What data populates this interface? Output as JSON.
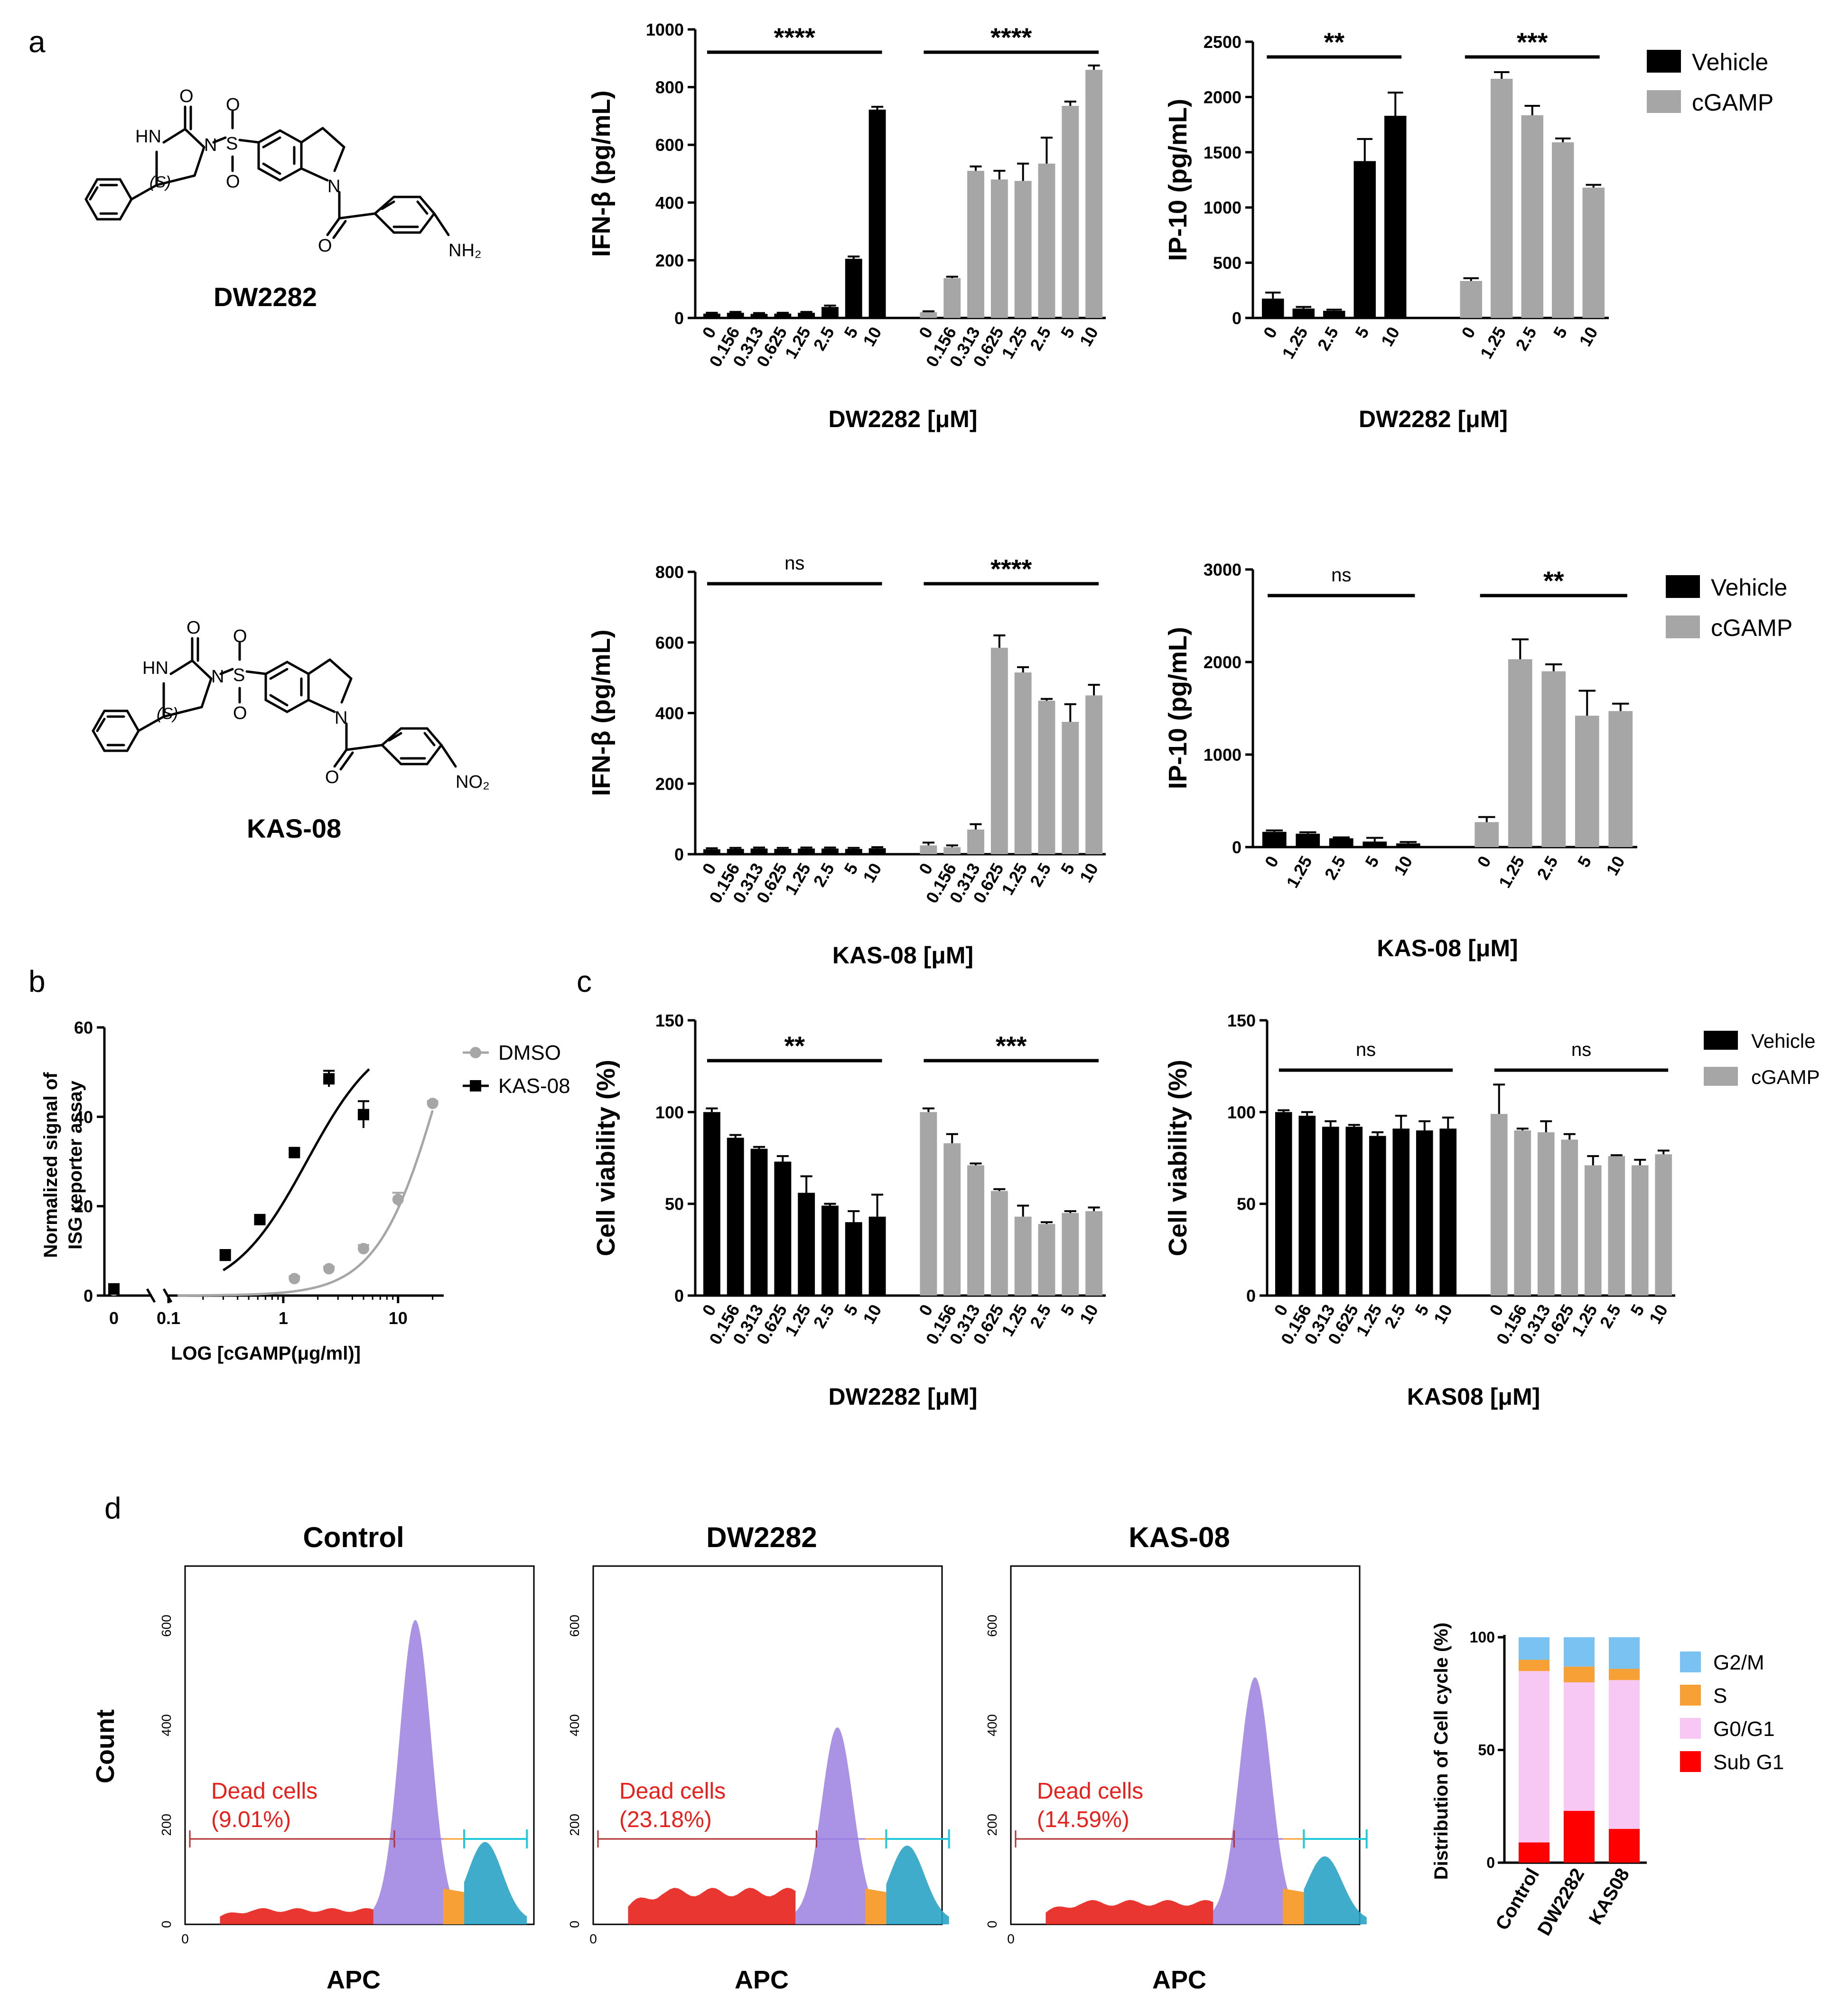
{
  "panels": {
    "a": "a",
    "b": "b",
    "c": "c",
    "d": "d"
  },
  "compounds": {
    "dw2282": {
      "name": "DW2282",
      "atoms": {
        "hn": "HN",
        "o1": "O",
        "o2": "O",
        "o3": "O",
        "s": "S",
        "n1": "N",
        "n2": "N",
        "stereo": "(S)",
        "o4": "O",
        "sub": "NH₂"
      }
    },
    "kas08": {
      "name": "KAS-08",
      "atoms": {
        "hn": "HN",
        "o1": "O",
        "o2": "O",
        "o3": "O",
        "s": "S",
        "n1": "N",
        "n2": "N",
        "stereo": "(S)",
        "o4": "O",
        "sub": "NO₂"
      }
    }
  },
  "legends": {
    "vehicle": "Vehicle",
    "cgamp": "cGAMP",
    "vehicle_color": "#000000",
    "cgamp_color": "#a6a6a6"
  },
  "chart_data": [
    {
      "id": "ifnb_dw2282",
      "type": "bar",
      "ylabel": "IFN-β (pg/mL)",
      "xlabel": "DW2282 [μM]",
      "ylim": [
        0,
        1000
      ],
      "yticks": [
        0,
        200,
        400,
        600,
        800,
        1000
      ],
      "categories": [
        "0",
        "0.156",
        "0.313",
        "0.625",
        "1.25",
        "2.5",
        "5",
        "10"
      ],
      "series": [
        {
          "name": "Vehicle",
          "values": [
            15,
            18,
            14,
            15,
            18,
            38,
            205,
            722
          ],
          "errors": [
            3,
            3,
            3,
            3,
            3,
            5,
            8,
            10
          ]
        },
        {
          "name": "cGAMP",
          "values": [
            20,
            138,
            510,
            480,
            475,
            535,
            735,
            860
          ],
          "errors": [
            3,
            5,
            15,
            30,
            60,
            90,
            15,
            15
          ]
        }
      ],
      "significance": [
        "****",
        "****"
      ]
    },
    {
      "id": "ip10_dw2282",
      "type": "bar",
      "ylabel": "IP-10 (pg/mL)",
      "xlabel": "DW2282 [μM]",
      "ylim": [
        0,
        2500
      ],
      "yticks": [
        0,
        500,
        1000,
        1500,
        2000,
        2500
      ],
      "categories": [
        "0",
        "1.25",
        "2.5",
        "5",
        "10"
      ],
      "series": [
        {
          "name": "Vehicle",
          "values": [
            175,
            85,
            65,
            1420,
            1830
          ],
          "errors": [
            55,
            15,
            10,
            200,
            210
          ]
        },
        {
          "name": "cGAMP",
          "values": [
            335,
            2165,
            1835,
            1590,
            1180
          ],
          "errors": [
            25,
            60,
            85,
            35,
            25
          ]
        }
      ],
      "significance": [
        "**",
        "***"
      ]
    },
    {
      "id": "ifnb_kas08",
      "type": "bar",
      "ylabel": "IFN-β (pg/mL)",
      "xlabel": "KAS-08 [μM]",
      "ylim": [
        0,
        800
      ],
      "yticks": [
        0,
        200,
        400,
        600,
        800
      ],
      "categories": [
        "0",
        "0.156",
        "0.313",
        "0.625",
        "1.25",
        "2.5",
        "5",
        "10"
      ],
      "series": [
        {
          "name": "Vehicle",
          "values": [
            14,
            15,
            16,
            15,
            16,
            16,
            15,
            17
          ],
          "errors": [
            3,
            3,
            3,
            3,
            3,
            3,
            3,
            3
          ]
        },
        {
          "name": "cGAMP",
          "values": [
            25,
            20,
            70,
            585,
            515,
            435,
            375,
            450
          ],
          "errors": [
            8,
            5,
            15,
            35,
            15,
            5,
            50,
            30
          ]
        }
      ],
      "significance": [
        "ns",
        "****"
      ]
    },
    {
      "id": "ip10_kas08",
      "type": "bar",
      "ylabel": "IP-10 (pg/mL)",
      "xlabel": "KAS-08 [μM]",
      "ylim": [
        0,
        3000
      ],
      "yticks": [
        0,
        1000,
        2000,
        3000
      ],
      "categories": [
        "0",
        "1.25",
        "2.5",
        "5",
        "10"
      ],
      "series": [
        {
          "name": "Vehicle",
          "values": [
            165,
            145,
            95,
            60,
            40
          ],
          "errors": [
            15,
            15,
            10,
            40,
            15
          ]
        },
        {
          "name": "cGAMP",
          "values": [
            270,
            2030,
            1900,
            1420,
            1470
          ],
          "errors": [
            55,
            215,
            75,
            270,
            80
          ]
        }
      ],
      "significance": [
        "ns",
        "**"
      ]
    },
    {
      "id": "isg_reporter",
      "type": "scatter",
      "ylabel": "Normalized signal of ISG reporter assay",
      "xlabel": "LOG [cGAMP(μg/ml)]",
      "yticks": [
        0,
        20,
        40,
        60
      ],
      "xticks": [
        "0",
        "0.1",
        "1",
        "10"
      ],
      "ylim": [
        0,
        60
      ],
      "series": [
        {
          "name": "DMSO",
          "color": "#a6a6a6",
          "x": [
            1.25,
            2.5,
            5,
            10,
            20
          ],
          "y": [
            3.8,
            6.0,
            10.5,
            21.5,
            43
          ],
          "errors": [
            0.5,
            0.5,
            0.8,
            1.5,
            0.5
          ],
          "zero_y": 1.2
        },
        {
          "name": "KAS-08",
          "color": "#000000",
          "x": [
            0.3125,
            0.625,
            1.25,
            2.5,
            5
          ],
          "y": [
            9,
            17,
            32,
            48.5,
            40.5
          ],
          "errors": [
            1.2,
            0.8,
            0.8,
            1.8,
            3.0
          ],
          "zero_y": 1.5
        }
      ]
    },
    {
      "id": "viability_dw2282",
      "type": "bar",
      "ylabel": "Cell viability (%)",
      "xlabel": "DW2282 [μM]",
      "ylim": [
        0,
        150
      ],
      "yticks": [
        0,
        50,
        100,
        150
      ],
      "categories": [
        "0",
        "0.156",
        "0.313",
        "0.625",
        "1.25",
        "2.5",
        "5",
        "10"
      ],
      "series": [
        {
          "name": "Vehicle",
          "values": [
            100,
            86,
            80,
            73,
            56,
            49,
            40,
            43
          ],
          "errors": [
            2,
            1.5,
            1,
            3,
            9,
            1,
            6,
            12
          ]
        },
        {
          "name": "cGAMP",
          "values": [
            100,
            83,
            71,
            57,
            43,
            39,
            45,
            46
          ],
          "errors": [
            2,
            5,
            1,
            1,
            6,
            1,
            1,
            2
          ]
        }
      ],
      "significance": [
        "**",
        "***"
      ]
    },
    {
      "id": "viability_kas08",
      "type": "bar",
      "ylabel": "Cell viability (%)",
      "xlabel": "KAS08 [μM]",
      "ylim": [
        0,
        150
      ],
      "yticks": [
        0,
        50,
        100,
        150
      ],
      "categories": [
        "0",
        "0.156",
        "0.313",
        "0.625",
        "1.25",
        "2.5",
        "5",
        "10"
      ],
      "series": [
        {
          "name": "Vehicle",
          "values": [
            100,
            98,
            92,
            92,
            87,
            91,
            90,
            91
          ],
          "errors": [
            1,
            2,
            3,
            1,
            2,
            7,
            5,
            6
          ]
        },
        {
          "name": "cGAMP",
          "values": [
            99,
            90,
            89,
            85,
            71,
            76,
            71,
            77
          ],
          "errors": [
            16,
            1,
            6,
            3,
            5,
            0.5,
            3,
            2
          ]
        }
      ],
      "significance": [
        "ns",
        "ns"
      ]
    },
    {
      "id": "cell_cycle",
      "type": "bar",
      "stacked": true,
      "ylabel": "Distribution of Cell cycle (%)",
      "ylim": [
        0,
        100
      ],
      "yticks": [
        0,
        50,
        100
      ],
      "categories": [
        "Control",
        "DW2282",
        "KAS08"
      ],
      "series": [
        {
          "name": "Sub G1",
          "color": "#ff0000",
          "values": [
            9,
            23,
            15
          ]
        },
        {
          "name": "G0/G1",
          "color": "#f8c8f4",
          "values": [
            76,
            57,
            66
          ]
        },
        {
          "name": "S",
          "color": "#f7a035",
          "values": [
            5,
            7,
            5
          ]
        },
        {
          "name": "G2/M",
          "color": "#79c2f2",
          "values": [
            10,
            13,
            14
          ]
        }
      ]
    }
  ],
  "flow": {
    "ylabel": "Count",
    "xlabel": "APC",
    "yticks": [
      "0",
      "200",
      "400",
      "600"
    ],
    "xtick": "0",
    "dead_label": "Dead cells",
    "plots": [
      {
        "title": "Control",
        "dead_pct": "(9.01%)"
      },
      {
        "title": "DW2282",
        "dead_pct": "(23.18%)"
      },
      {
        "title": "KAS-08",
        "dead_pct": "(14.59%)"
      }
    ]
  }
}
